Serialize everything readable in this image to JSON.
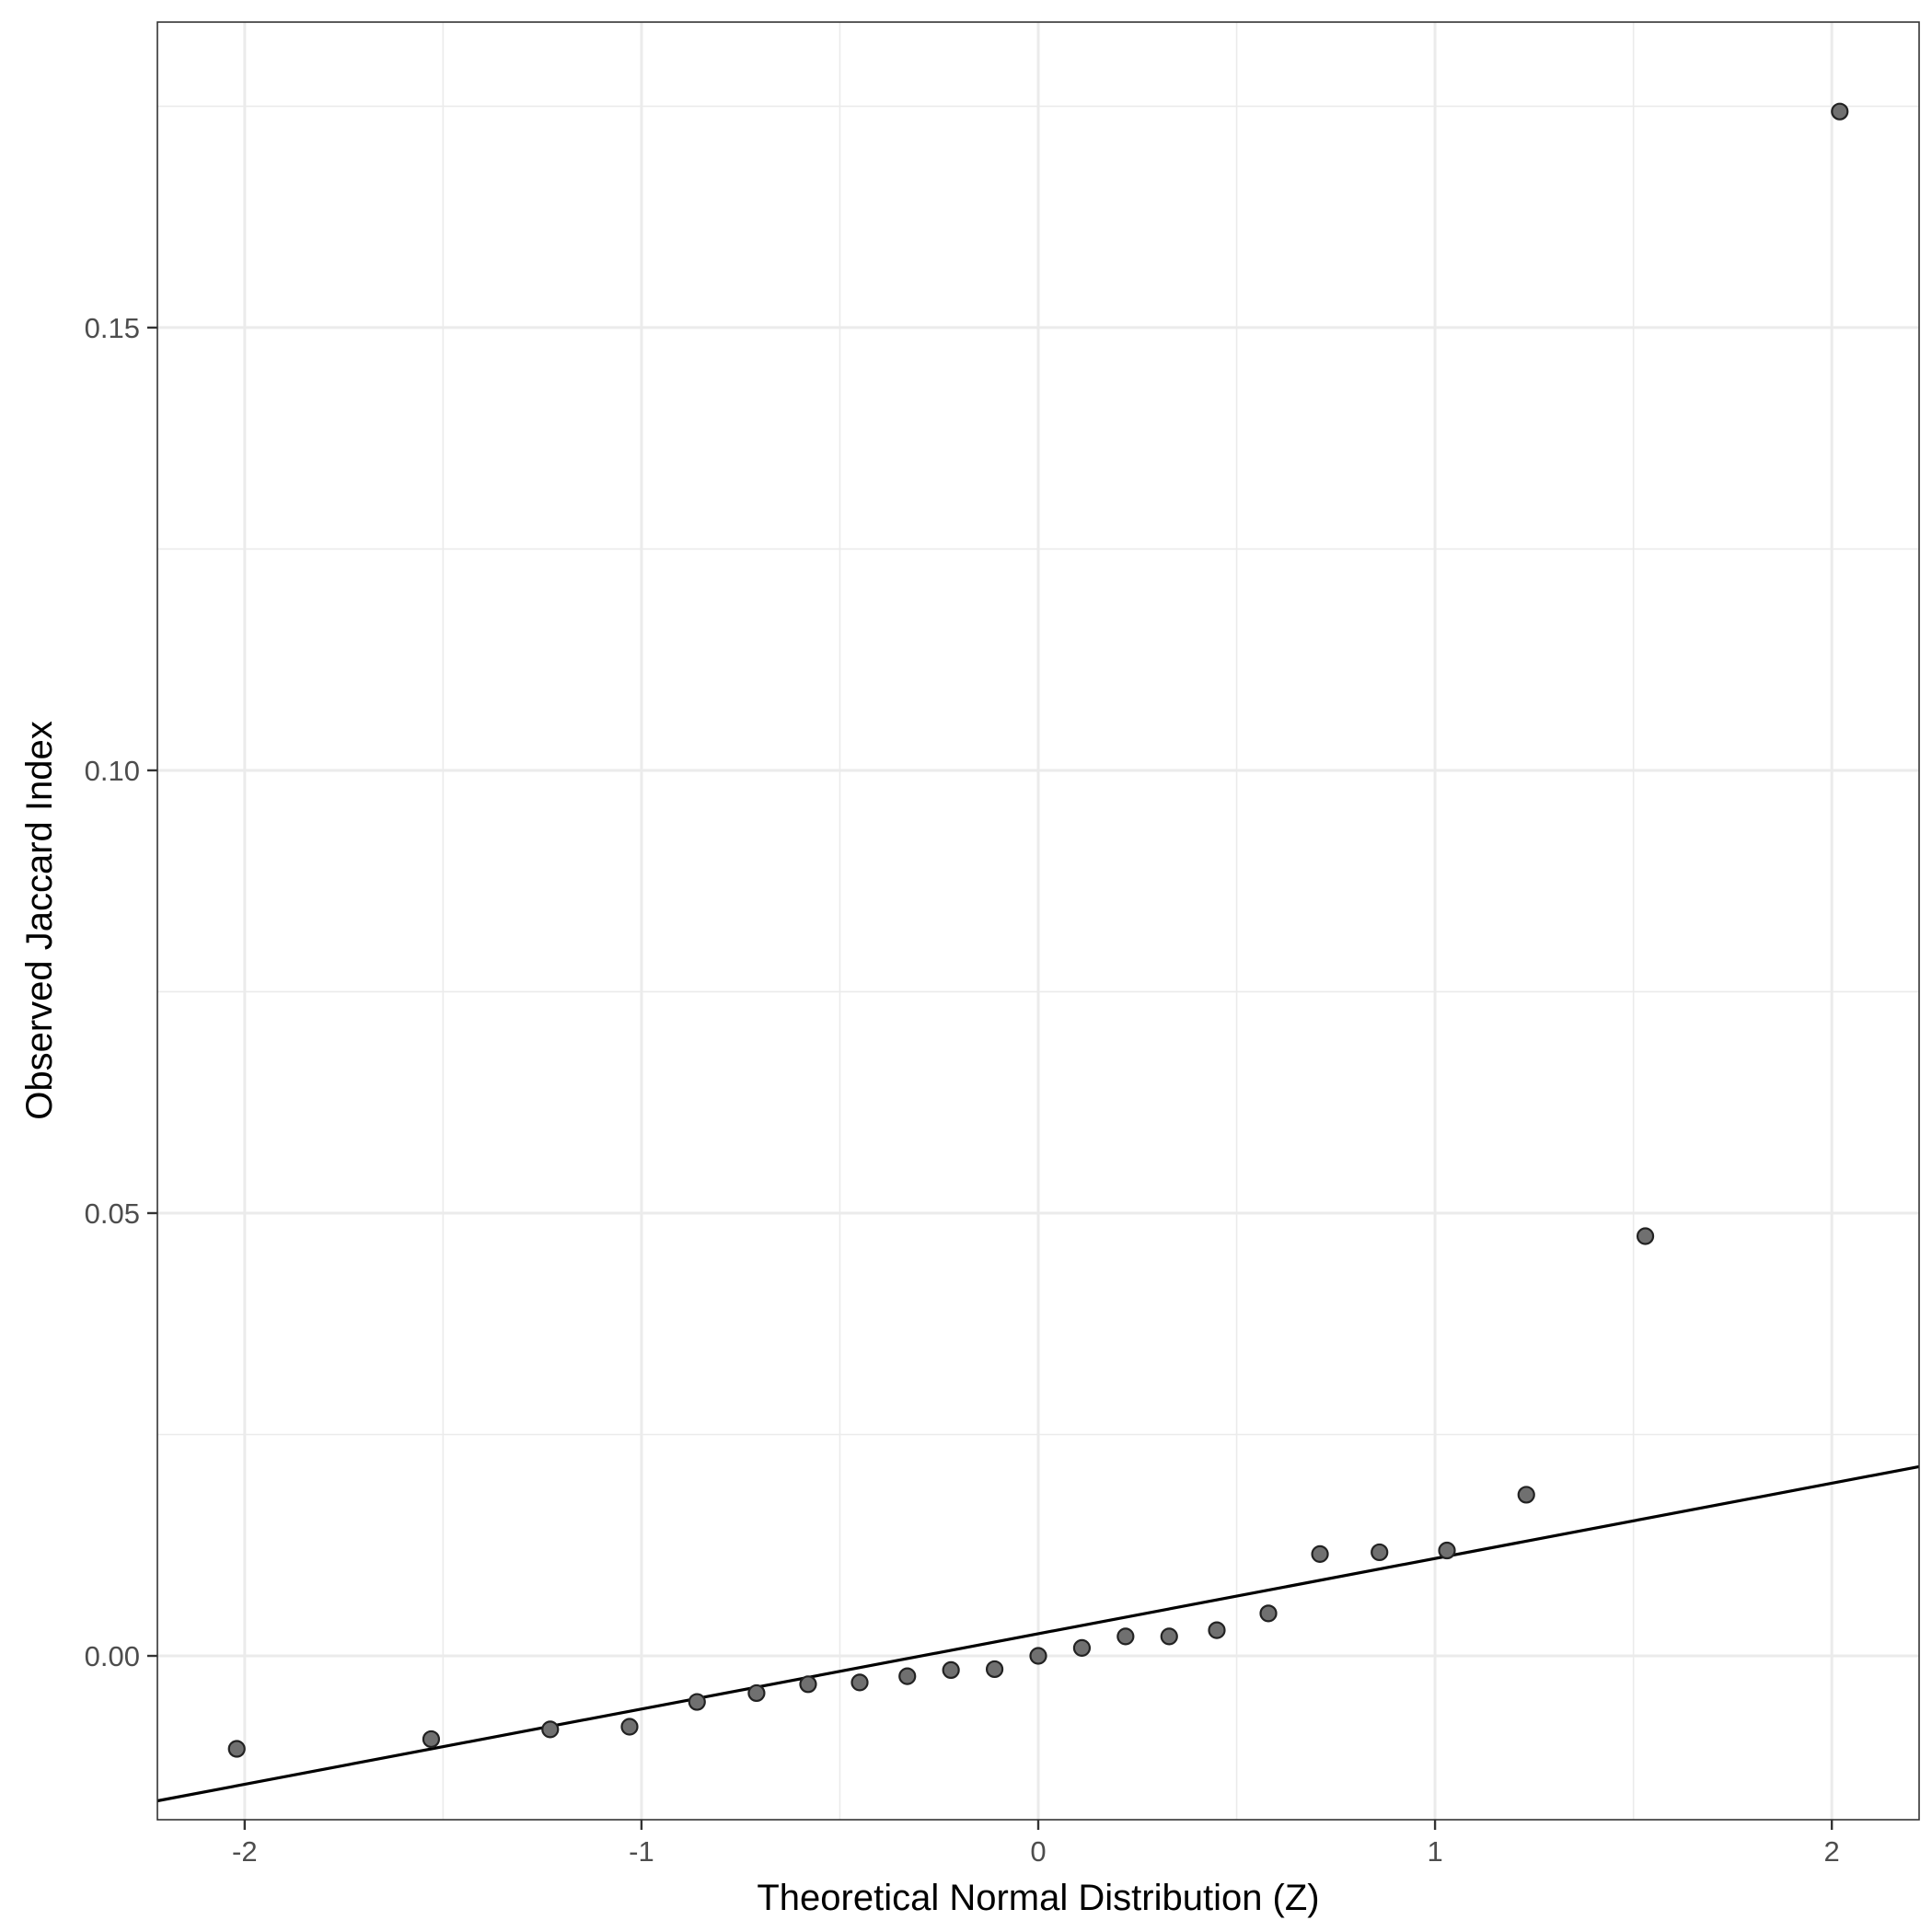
{
  "chart_data": {
    "type": "scatter",
    "title": "",
    "xlabel": "Theoretical Normal Distribution (Z)",
    "ylabel": "Observed Jaccard Index",
    "xlim": [
      -2.22,
      2.22
    ],
    "ylim": [
      -0.0185,
      0.1845
    ],
    "x_ticks": [
      {
        "value": -2,
        "label": "-2"
      },
      {
        "value": -1,
        "label": "-1"
      },
      {
        "value": 0,
        "label": "0"
      },
      {
        "value": 1,
        "label": "1"
      },
      {
        "value": 2,
        "label": "2"
      }
    ],
    "y_ticks": [
      {
        "value": 0.0,
        "label": "0.00"
      },
      {
        "value": 0.05,
        "label": "0.05"
      },
      {
        "value": 0.1,
        "label": "0.10"
      },
      {
        "value": 0.15,
        "label": "0.15"
      }
    ],
    "x_minor": [
      -1.5,
      -0.5,
      0.5,
      1.5
    ],
    "y_minor": [
      0.025,
      0.075,
      0.125,
      0.175
    ],
    "grid": true,
    "series": [
      {
        "points": [
          {
            "x": -2.02,
            "y": -0.0105
          },
          {
            "x": -1.53,
            "y": -0.0094
          },
          {
            "x": -1.23,
            "y": -0.0083
          },
          {
            "x": -1.03,
            "y": -0.008
          },
          {
            "x": -0.86,
            "y": -0.0052
          },
          {
            "x": -0.71,
            "y": -0.0042
          },
          {
            "x": -0.58,
            "y": -0.0032
          },
          {
            "x": -0.45,
            "y": -0.003
          },
          {
            "x": -0.33,
            "y": -0.0023
          },
          {
            "x": -0.22,
            "y": -0.0016
          },
          {
            "x": -0.11,
            "y": -0.0015
          },
          {
            "x": 0.0,
            "y": 0.0
          },
          {
            "x": 0.11,
            "y": 0.0009
          },
          {
            "x": 0.22,
            "y": 0.0022
          },
          {
            "x": 0.33,
            "y": 0.0022
          },
          {
            "x": 0.45,
            "y": 0.0029
          },
          {
            "x": 0.58,
            "y": 0.0048
          },
          {
            "x": 0.71,
            "y": 0.0115
          },
          {
            "x": 0.86,
            "y": 0.0117
          },
          {
            "x": 1.03,
            "y": 0.0119
          },
          {
            "x": 1.23,
            "y": 0.0182
          },
          {
            "x": 1.53,
            "y": 0.0474
          },
          {
            "x": 2.02,
            "y": 0.1744
          }
        ]
      }
    ],
    "reference_line": {
      "intercept": 0.0025,
      "slope": 0.0085
    }
  }
}
